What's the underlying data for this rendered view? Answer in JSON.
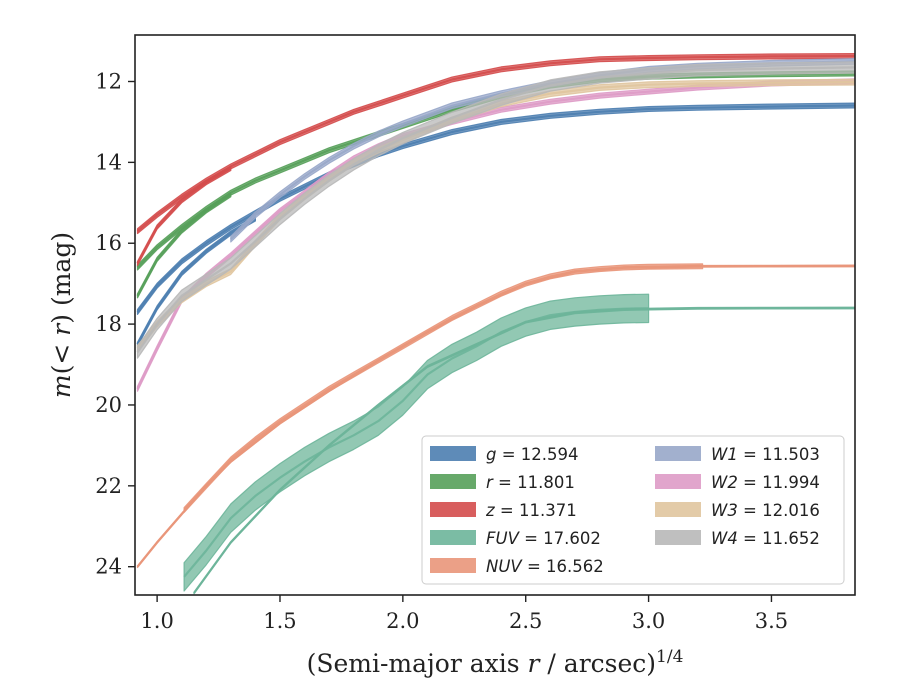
{
  "chart_data": {
    "type": "line",
    "title": "",
    "xlabel": "(Semi-major axis r / arcsec)^1/4",
    "ylabel": "m(< r) (mag)",
    "xlim": [
      0.91,
      3.84
    ],
    "ylim": [
      24.7,
      10.85
    ],
    "y_inverted": true,
    "x_ticks": [
      "1.0",
      "1.5",
      "2.0",
      "2.5",
      "3.0",
      "3.5"
    ],
    "y_ticks": [
      "12",
      "14",
      "16",
      "18",
      "20",
      "22",
      "24"
    ],
    "grid": false,
    "legend_position": "lower-right",
    "legend_columns": 2,
    "series": [
      {
        "name": "g = 12.594",
        "color": "#4c7eb0",
        "band": 0.06,
        "x": [
          0.92,
          1.0,
          1.1,
          1.2,
          1.3,
          1.4,
          1.5,
          1.6,
          1.7,
          1.8,
          1.9,
          2.0,
          2.2,
          2.4,
          2.6,
          2.8,
          3.0,
          3.2,
          3.5,
          3.84
        ],
        "y": [
          17.7,
          17.05,
          16.45,
          16.0,
          15.6,
          15.25,
          14.9,
          14.6,
          14.3,
          14.05,
          13.8,
          13.6,
          13.25,
          13.0,
          12.85,
          12.75,
          12.68,
          12.65,
          12.62,
          12.594
        ]
      },
      {
        "name": "",
        "color": "#4c7eb0",
        "band": 0.05,
        "x": [
          0.92,
          1.0,
          1.1,
          1.2,
          1.3,
          1.4
        ],
        "y": [
          18.5,
          17.6,
          16.75,
          16.2,
          15.75,
          15.4
        ]
      },
      {
        "name": "r = 11.801",
        "color": "#57a05a",
        "band": 0.06,
        "x": [
          0.92,
          1.0,
          1.1,
          1.2,
          1.3,
          1.4,
          1.5,
          1.6,
          1.7,
          1.8,
          1.9,
          2.0,
          2.2,
          2.4,
          2.6,
          2.8,
          3.0,
          3.2,
          3.5,
          3.84
        ],
        "y": [
          16.6,
          16.1,
          15.6,
          15.15,
          14.75,
          14.45,
          14.2,
          13.95,
          13.7,
          13.5,
          13.3,
          13.1,
          12.7,
          12.35,
          12.1,
          11.95,
          11.88,
          11.85,
          11.82,
          11.801
        ]
      },
      {
        "name": "",
        "color": "#57a05a",
        "band": 0.05,
        "x": [
          0.92,
          1.0,
          1.1,
          1.2,
          1.3
        ],
        "y": [
          17.3,
          16.4,
          15.7,
          15.2,
          14.8
        ]
      },
      {
        "name": "z = 11.371",
        "color": "#d44c4c",
        "band": 0.06,
        "x": [
          0.92,
          1.0,
          1.1,
          1.2,
          1.3,
          1.4,
          1.5,
          1.6,
          1.7,
          1.8,
          1.9,
          2.0,
          2.2,
          2.4,
          2.6,
          2.8,
          3.0,
          3.2,
          3.5,
          3.84
        ],
        "y": [
          15.7,
          15.3,
          14.85,
          14.45,
          14.1,
          13.8,
          13.5,
          13.25,
          13.0,
          12.75,
          12.55,
          12.35,
          11.95,
          11.7,
          11.55,
          11.45,
          11.42,
          11.4,
          11.38,
          11.371
        ]
      },
      {
        "name": "",
        "color": "#d44c4c",
        "band": 0.05,
        "x": [
          0.92,
          1.0,
          1.1,
          1.2,
          1.3
        ],
        "y": [
          16.5,
          15.6,
          14.95,
          14.5,
          14.15
        ]
      },
      {
        "name": "FUV = 17.602",
        "color": "#6db59a",
        "band": 0.35,
        "x": [
          1.11,
          1.2,
          1.3,
          1.4,
          1.5,
          1.6,
          1.7,
          1.8,
          1.9,
          2.0,
          2.1,
          2.2,
          2.3,
          2.4,
          2.5,
          2.6,
          2.7,
          2.8,
          2.9,
          3.0
        ],
        "y": [
          24.25,
          23.6,
          22.8,
          22.25,
          21.8,
          21.4,
          21.05,
          20.75,
          20.4,
          19.9,
          19.25,
          18.85,
          18.55,
          18.2,
          17.95,
          17.78,
          17.7,
          17.65,
          17.62,
          17.61
        ]
      },
      {
        "name": "",
        "color": "#6db59a",
        "band": 0.02,
        "x": [
          1.15,
          1.3,
          1.5,
          1.7,
          1.9,
          2.1,
          2.3,
          2.5,
          2.7,
          2.9,
          3.2,
          3.5,
          3.84
        ],
        "y": [
          24.65,
          23.4,
          22.1,
          21.0,
          20.0,
          19.05,
          18.5,
          17.95,
          17.72,
          17.64,
          17.61,
          17.605,
          17.602
        ]
      },
      {
        "name": "NUV = 16.562",
        "color": "#e9967a",
        "band": 0.06,
        "x": [
          1.11,
          1.2,
          1.3,
          1.4,
          1.5,
          1.6,
          1.7,
          1.8,
          1.9,
          2.0,
          2.1,
          2.2,
          2.3,
          2.4,
          2.5,
          2.6,
          2.7,
          2.8,
          2.9,
          3.0,
          3.22
        ],
        "y": [
          22.6,
          22.0,
          21.35,
          20.85,
          20.4,
          20.0,
          19.6,
          19.25,
          18.9,
          18.55,
          18.2,
          17.85,
          17.55,
          17.25,
          17.0,
          16.82,
          16.7,
          16.64,
          16.6,
          16.58,
          16.57
        ]
      },
      {
        "name": "",
        "color": "#e9967a",
        "band": 0.02,
        "x": [
          0.92,
          1.0,
          1.1,
          1.2,
          1.3,
          1.5,
          1.7,
          1.9,
          2.1,
          2.3,
          2.5,
          2.7,
          2.9,
          3.2,
          3.5,
          3.84
        ],
        "y": [
          24.0,
          23.4,
          22.7,
          22.0,
          21.4,
          20.45,
          19.65,
          18.9,
          18.2,
          17.55,
          17.0,
          16.7,
          16.6,
          16.57,
          16.565,
          16.562
        ]
      },
      {
        "name": "W1 = 11.503",
        "color": "#98a7c9",
        "band": 0.07,
        "x": [
          1.3,
          1.4,
          1.5,
          1.6,
          1.7,
          1.8,
          1.9,
          2.0,
          2.2,
          2.4,
          2.6,
          2.8,
          3.0,
          3.2,
          3.5,
          3.84
        ],
        "y": [
          15.9,
          15.3,
          14.8,
          14.35,
          13.95,
          13.6,
          13.3,
          13.05,
          12.6,
          12.3,
          12.05,
          11.85,
          11.7,
          11.62,
          11.55,
          11.503
        ]
      },
      {
        "name": "W2 = 11.994",
        "color": "#de9bc6",
        "band": 0.06,
        "x": [
          0.92,
          1.0,
          1.1,
          1.2,
          1.3,
          1.4,
          1.5,
          1.6,
          1.7,
          1.8,
          1.9,
          2.0,
          2.2,
          2.4,
          2.6,
          2.8,
          3.0,
          3.2,
          3.5,
          3.84
        ],
        "y": [
          19.6,
          18.6,
          17.4,
          16.8,
          16.3,
          15.75,
          15.2,
          14.75,
          14.3,
          13.9,
          13.6,
          13.35,
          13.0,
          12.7,
          12.5,
          12.35,
          12.25,
          12.15,
          12.05,
          11.994
        ]
      },
      {
        "name": "W3 = 12.016",
        "color": "#e0c59f",
        "band": 0.07,
        "x": [
          0.92,
          1.0,
          1.1,
          1.2,
          1.3,
          1.4,
          1.5,
          1.6,
          1.7,
          1.8,
          1.9,
          2.0,
          2.2,
          2.4,
          2.6,
          2.8,
          3.0,
          3.2,
          3.5,
          3.84
        ],
        "y": [
          18.6,
          18.0,
          17.4,
          17.0,
          16.7,
          16.0,
          15.35,
          14.85,
          14.4,
          14.0,
          13.7,
          13.45,
          12.95,
          12.55,
          12.3,
          12.15,
          12.08,
          12.05,
          12.03,
          12.016
        ]
      },
      {
        "name": "W4 = 11.652",
        "color": "#b8b8b8",
        "band": 0.14,
        "x": [
          0.92,
          1.0,
          1.1,
          1.2,
          1.3,
          1.4,
          1.5,
          1.6,
          1.7,
          1.8,
          1.9,
          2.0,
          2.2,
          2.4,
          2.6,
          2.8,
          3.0,
          3.2,
          3.5,
          3.84
        ],
        "y": [
          18.7,
          18.0,
          17.3,
          16.9,
          16.5,
          15.95,
          15.4,
          14.9,
          14.45,
          14.05,
          13.7,
          13.4,
          12.9,
          12.45,
          12.1,
          11.9,
          11.8,
          11.72,
          11.68,
          11.652
        ]
      }
    ],
    "legend": [
      {
        "label_var": "g",
        "label_rest": " = 12.594",
        "color": "#4c7eb0"
      },
      {
        "label_var": "r",
        "label_rest": " = 11.801",
        "color": "#57a05a"
      },
      {
        "label_var": "z",
        "label_rest": " = 11.371",
        "color": "#d44c4c"
      },
      {
        "label_var": "FUV",
        "label_rest": " = 17.602",
        "color": "#6db59a"
      },
      {
        "label_var": "NUV",
        "label_rest": " = 16.562",
        "color": "#e9967a"
      },
      {
        "label_var": "W1",
        "label_rest": " = 11.503",
        "color": "#98a7c9"
      },
      {
        "label_var": "W2",
        "label_rest": " = 11.994",
        "color": "#de9bc6"
      },
      {
        "label_var": "W3",
        "label_rest": " = 12.016",
        "color": "#e0c59f"
      },
      {
        "label_var": "W4",
        "label_rest": " = 11.652",
        "color": "#b8b8b8"
      }
    ]
  }
}
